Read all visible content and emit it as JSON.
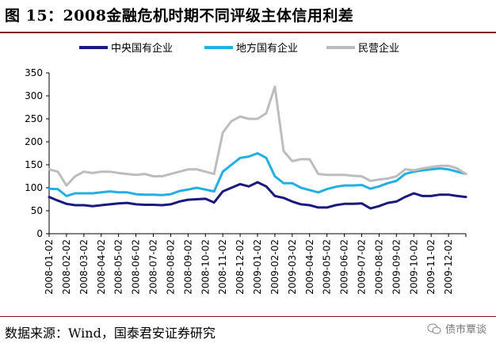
{
  "figure_title": "图 15：2008金融危机时期不同评级主体信用利差",
  "source_note": "数据来源：Wind，国泰君安证券研究",
  "watermark": "债市覃谈",
  "colors": {
    "title_rule": "#7a1b1b",
    "central_soe": "#1a1a7e",
    "local_soe": "#22b0e3",
    "private": "#bdbdbd"
  },
  "chart_data": {
    "type": "line",
    "title": "",
    "xlabel": "",
    "ylabel": "",
    "ylim": [
      0,
      350
    ],
    "yticks": [
      0,
      50,
      100,
      150,
      200,
      250,
      300,
      350
    ],
    "x_ticks": [
      "2008-01-02",
      "2008-02-02",
      "2008-03-02",
      "2008-04-02",
      "2008-05-02",
      "2008-06-02",
      "2008-07-02",
      "2008-08-02",
      "2008-09-02",
      "2008-10-02",
      "2008-11-02",
      "2008-12-02",
      "2009-01-02",
      "2009-02-02",
      "2009-03-02",
      "2009-04-02",
      "2009-05-02",
      "2009-06-02",
      "2009-07-02",
      "2009-08-02",
      "2009-09-02",
      "2009-10-02",
      "2009-11-02",
      "2009-12-02"
    ],
    "grid": false,
    "legend_position": "top",
    "series": [
      {
        "name": "中央国有企业",
        "color": "#1a1a7e",
        "points": [
          [
            0,
            80
          ],
          [
            0.5,
            72
          ],
          [
            1,
            65
          ],
          [
            1.5,
            62
          ],
          [
            2,
            62
          ],
          [
            2.5,
            60
          ],
          [
            3,
            62
          ],
          [
            3.5,
            64
          ],
          [
            4,
            66
          ],
          [
            4.5,
            67
          ],
          [
            5,
            64
          ],
          [
            5.5,
            63
          ],
          [
            6,
            63
          ],
          [
            6.5,
            62
          ],
          [
            7,
            64
          ],
          [
            7.5,
            70
          ],
          [
            8,
            74
          ],
          [
            8.5,
            75
          ],
          [
            9,
            76
          ],
          [
            9.5,
            68
          ],
          [
            10,
            92
          ],
          [
            10.5,
            100
          ],
          [
            11,
            108
          ],
          [
            11.5,
            103
          ],
          [
            12,
            112
          ],
          [
            12.5,
            103
          ],
          [
            13,
            82
          ],
          [
            13.5,
            78
          ],
          [
            14,
            70
          ],
          [
            14.5,
            64
          ],
          [
            15,
            62
          ],
          [
            15.5,
            57
          ],
          [
            16,
            57
          ],
          [
            16.5,
            62
          ],
          [
            17,
            65
          ],
          [
            17.5,
            65
          ],
          [
            18,
            66
          ],
          [
            18.5,
            55
          ],
          [
            19,
            60
          ],
          [
            19.5,
            67
          ],
          [
            20,
            70
          ],
          [
            20.5,
            80
          ],
          [
            21,
            88
          ],
          [
            21.5,
            82
          ],
          [
            22,
            82
          ],
          [
            22.5,
            85
          ],
          [
            23,
            85
          ],
          [
            23.5,
            82
          ],
          [
            24,
            80
          ]
        ]
      },
      {
        "name": "地方国有企业",
        "color": "#22b0e3",
        "points": [
          [
            0,
            98
          ],
          [
            0.5,
            97
          ],
          [
            1,
            82
          ],
          [
            1.5,
            88
          ],
          [
            2,
            88
          ],
          [
            2.5,
            88
          ],
          [
            3,
            90
          ],
          [
            3.5,
            92
          ],
          [
            4,
            90
          ],
          [
            4.5,
            90
          ],
          [
            5,
            86
          ],
          [
            5.5,
            85
          ],
          [
            6,
            85
          ],
          [
            6.5,
            84
          ],
          [
            7,
            86
          ],
          [
            7.5,
            93
          ],
          [
            8,
            96
          ],
          [
            8.5,
            100
          ],
          [
            9,
            96
          ],
          [
            9.5,
            92
          ],
          [
            10,
            135
          ],
          [
            10.5,
            150
          ],
          [
            11,
            165
          ],
          [
            11.5,
            168
          ],
          [
            12,
            175
          ],
          [
            12.5,
            165
          ],
          [
            13,
            125
          ],
          [
            13.5,
            110
          ],
          [
            14,
            110
          ],
          [
            14.5,
            100
          ],
          [
            15,
            95
          ],
          [
            15.5,
            90
          ],
          [
            16,
            97
          ],
          [
            16.5,
            102
          ],
          [
            17,
            105
          ],
          [
            17.5,
            105
          ],
          [
            18,
            106
          ],
          [
            18.5,
            98
          ],
          [
            19,
            103
          ],
          [
            19.5,
            110
          ],
          [
            20,
            115
          ],
          [
            20.5,
            130
          ],
          [
            21,
            135
          ],
          [
            21.5,
            138
          ],
          [
            22,
            140
          ],
          [
            22.5,
            142
          ],
          [
            23,
            140
          ],
          [
            23.5,
            135
          ],
          [
            24,
            130
          ]
        ]
      },
      {
        "name": "民营企业",
        "color": "#bdbdbd",
        "points": [
          [
            0,
            140
          ],
          [
            0.5,
            135
          ],
          [
            1,
            105
          ],
          [
            1.5,
            125
          ],
          [
            2,
            135
          ],
          [
            2.5,
            132
          ],
          [
            3,
            135
          ],
          [
            3.5,
            135
          ],
          [
            4,
            132
          ],
          [
            4.5,
            130
          ],
          [
            5,
            128
          ],
          [
            5.5,
            130
          ],
          [
            6,
            125
          ],
          [
            6.5,
            125
          ],
          [
            7,
            130
          ],
          [
            7.5,
            135
          ],
          [
            8,
            140
          ],
          [
            8.5,
            140
          ],
          [
            9,
            135
          ],
          [
            9.5,
            130
          ],
          [
            10,
            220
          ],
          [
            10.5,
            245
          ],
          [
            11,
            255
          ],
          [
            11.5,
            250
          ],
          [
            12,
            250
          ],
          [
            12.5,
            262
          ],
          [
            13,
            320
          ],
          [
            13.5,
            180
          ],
          [
            14,
            158
          ],
          [
            14.5,
            162
          ],
          [
            15,
            162
          ],
          [
            15.5,
            130
          ],
          [
            16,
            128
          ],
          [
            16.5,
            128
          ],
          [
            17,
            128
          ],
          [
            17.5,
            126
          ],
          [
            18,
            125
          ],
          [
            18.5,
            115
          ],
          [
            19,
            118
          ],
          [
            19.5,
            120
          ],
          [
            20,
            125
          ],
          [
            20.5,
            140
          ],
          [
            21,
            138
          ],
          [
            21.5,
            142
          ],
          [
            22,
            145
          ],
          [
            22.5,
            148
          ],
          [
            23,
            148
          ],
          [
            23.5,
            142
          ],
          [
            24,
            130
          ]
        ]
      }
    ]
  }
}
